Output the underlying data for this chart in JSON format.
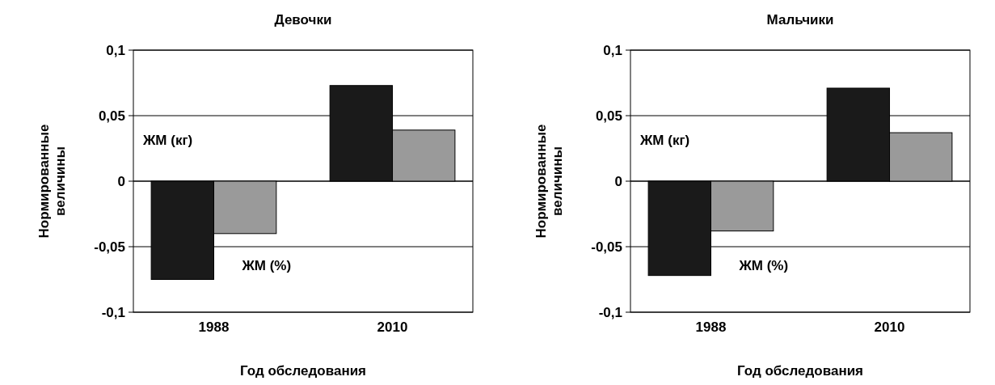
{
  "chart_data": [
    {
      "type": "bar",
      "title": "Девочки",
      "xlabel": "Год обследования",
      "ylabel": "Нормированные величины",
      "categories": [
        "1988",
        "2010"
      ],
      "series": [
        {
          "name": "ЖМ (кг)",
          "color": "#1a1a1a",
          "values": [
            -0.075,
            0.073
          ]
        },
        {
          "name": "ЖМ (%)",
          "color": "#9a9a9a",
          "values": [
            -0.04,
            0.039
          ]
        }
      ],
      "ylim": [
        -0.1,
        0.1
      ],
      "yticks": [
        {
          "value": -0.1,
          "label": "-0,1"
        },
        {
          "value": -0.05,
          "label": "-0,05"
        },
        {
          "value": 0,
          "label": "0"
        },
        {
          "value": 0.05,
          "label": "0,05"
        },
        {
          "value": 0.1,
          "label": "0,1"
        }
      ],
      "grid": "y",
      "legend": false
    },
    {
      "type": "bar",
      "title": "Мальчики",
      "xlabel": "Год обследования",
      "ylabel": "Нормированные величины",
      "categories": [
        "1988",
        "2010"
      ],
      "series": [
        {
          "name": "ЖМ (кг)",
          "color": "#1a1a1a",
          "values": [
            -0.072,
            0.071
          ]
        },
        {
          "name": "ЖМ (%)",
          "color": "#9a9a9a",
          "values": [
            -0.038,
            0.037
          ]
        }
      ],
      "ylim": [
        -0.1,
        0.1
      ],
      "yticks": [
        {
          "value": -0.1,
          "label": "-0,1"
        },
        {
          "value": -0.05,
          "label": "-0,05"
        },
        {
          "value": 0,
          "label": "0"
        },
        {
          "value": 0.05,
          "label": "0,05"
        },
        {
          "value": 0.1,
          "label": "0,1"
        }
      ],
      "grid": "y",
      "legend": false
    }
  ]
}
